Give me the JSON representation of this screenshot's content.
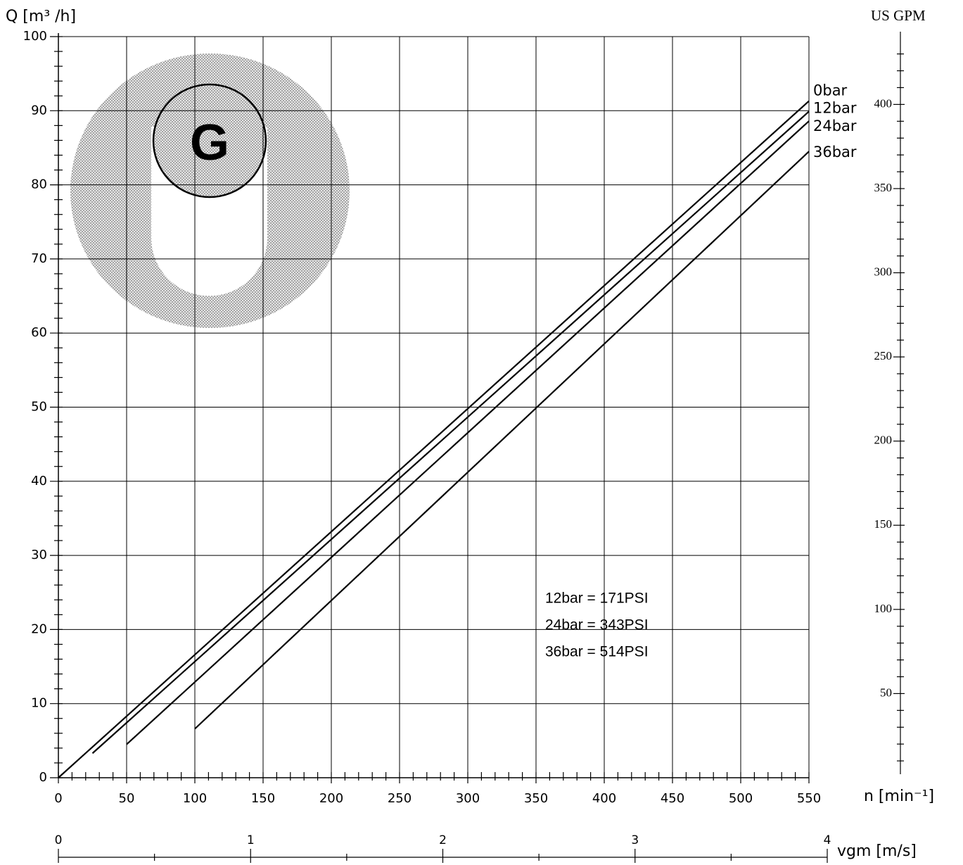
{
  "chart_data": {
    "type": "line",
    "ylabel": "Q [m³ /h]",
    "y2label": "US GPM",
    "xlabel": "n [min⁻¹]",
    "xlim": [
      0,
      550
    ],
    "xticks": [
      0,
      50,
      100,
      150,
      200,
      250,
      300,
      350,
      400,
      450,
      500,
      550
    ],
    "xminorticks": [
      10,
      20,
      30,
      40,
      60,
      70,
      80,
      90,
      110,
      120,
      130,
      140,
      160,
      170,
      180,
      190,
      210,
      220,
      230,
      240,
      260,
      270,
      280,
      290,
      310,
      320,
      330,
      340,
      360,
      370,
      380,
      390,
      410,
      420,
      430,
      440,
      460,
      470,
      480,
      490,
      510,
      520,
      530,
      540
    ],
    "ylim": [
      0,
      100
    ],
    "yticks": [
      0,
      10,
      20,
      30,
      40,
      50,
      60,
      70,
      80,
      90,
      100
    ],
    "yminorticks": [
      2,
      4,
      6,
      8,
      12,
      14,
      16,
      18,
      22,
      24,
      26,
      28,
      32,
      34,
      36,
      38,
      42,
      44,
      46,
      48,
      52,
      54,
      56,
      58,
      62,
      64,
      66,
      68,
      72,
      74,
      76,
      78,
      82,
      84,
      86,
      88,
      92,
      94,
      96,
      98
    ],
    "y2lim": [
      0,
      440.3
    ],
    "y2ticks": [
      50,
      100,
      150,
      200,
      250,
      300,
      350,
      400
    ],
    "y2minorticks": [
      10,
      20,
      30,
      40,
      60,
      70,
      80,
      90,
      110,
      120,
      130,
      140,
      160,
      170,
      180,
      190,
      210,
      220,
      230,
      240,
      260,
      270,
      280,
      290,
      310,
      320,
      330,
      340,
      360,
      370,
      380,
      390,
      410,
      420,
      430
    ],
    "grid": true,
    "series": [
      {
        "name": "0bar",
        "color": "#000000",
        "x": [
          0,
          550
        ],
        "values": [
          0,
          91.3
        ]
      },
      {
        "name": "12bar",
        "color": "#000000",
        "x": [
          25,
          550
        ],
        "values": [
          3.3,
          89.9
        ]
      },
      {
        "name": "24bar",
        "color": "#000000",
        "x": [
          50,
          550
        ],
        "values": [
          4.5,
          88.6
        ]
      },
      {
        "name": "36bar",
        "color": "#000000",
        "x": [
          100,
          550
        ],
        "values": [
          6.6,
          84.5
        ]
      }
    ],
    "annotations": [
      "12bar = 171PSI",
      "24bar = 343PSI",
      "36bar = 514PSI"
    ],
    "logo_text": "G",
    "vgm_axis": {
      "label": "vgm [m/s]",
      "lim": [
        0,
        4
      ],
      "ticks": [
        0,
        1,
        2,
        3,
        4
      ],
      "minorticks": [
        0.5,
        1.5,
        2.5,
        3.5
      ]
    }
  }
}
